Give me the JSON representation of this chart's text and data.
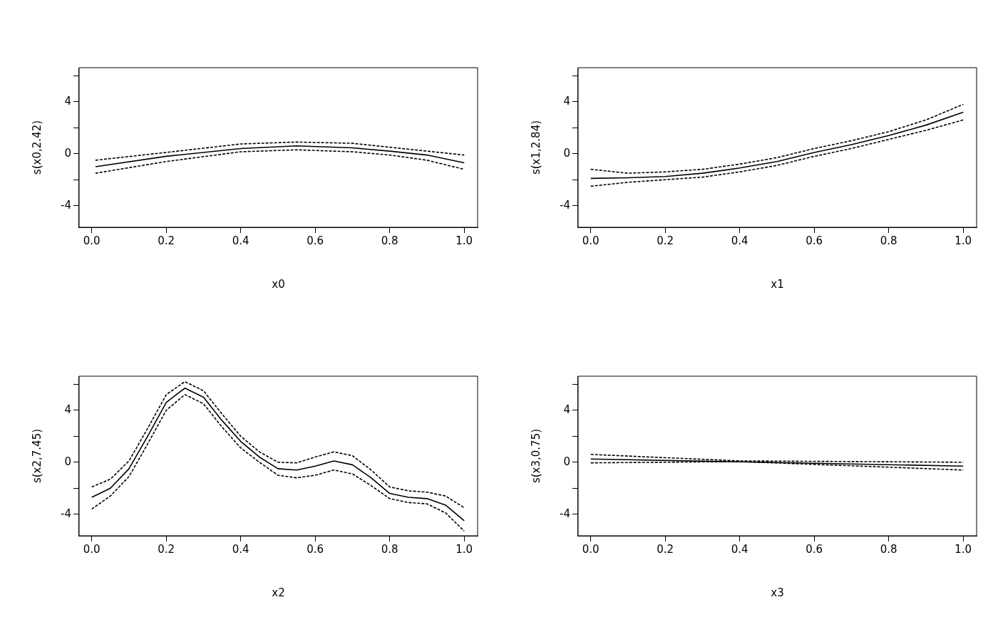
{
  "chart_data": [
    {
      "type": "line",
      "xlabel": "x0",
      "ylabel": "s(x0,2.42)",
      "marker": "none",
      "xlim": [
        -0.034,
        1.036
      ],
      "ylim": [
        -5.66,
        6.62
      ],
      "xticks": [
        {
          "value": 0,
          "label": "0.0"
        },
        {
          "value": 0.2,
          "label": "0.2"
        },
        {
          "value": 0.4,
          "label": "0.4"
        },
        {
          "value": 0.6,
          "label": "0.6"
        },
        {
          "value": 0.8,
          "label": "0.8"
        },
        {
          "value": 1,
          "label": "1.0"
        }
      ],
      "yticks": [
        {
          "value": -4,
          "label": "-4"
        },
        {
          "value": -2,
          "label": null
        },
        {
          "value": 0,
          "label": "0"
        },
        {
          "value": 2,
          "label": null
        },
        {
          "value": 4,
          "label": "4"
        },
        {
          "value": 6,
          "label": null
        }
      ],
      "series": [
        {
          "color": "#000000",
          "line_style": "solid",
          "x": [
            0.01,
            0.2,
            0.4,
            0.55,
            0.7,
            0.8,
            0.9,
            1.0
          ],
          "values": [
            -1.0,
            -0.2,
            0.4,
            0.6,
            0.45,
            0.2,
            -0.1,
            -0.7
          ]
        },
        {
          "color": "#000000",
          "line_style": "dashed",
          "x": [
            0.01,
            0.2,
            0.4,
            0.55,
            0.7,
            0.8,
            0.9,
            1.0
          ],
          "values": [
            -0.5,
            0.1,
            0.75,
            0.9,
            0.8,
            0.5,
            0.2,
            -0.1
          ]
        },
        {
          "color": "#000000",
          "line_style": "dashed",
          "x": [
            0.01,
            0.2,
            0.4,
            0.55,
            0.7,
            0.8,
            0.9,
            1.0
          ],
          "values": [
            -1.5,
            -0.6,
            0.15,
            0.3,
            0.15,
            -0.1,
            -0.5,
            -1.2
          ]
        }
      ]
    },
    {
      "type": "line",
      "xlabel": "x1",
      "ylabel": "s(x1,2.84)",
      "marker": "none",
      "xlim": [
        -0.034,
        1.036
      ],
      "ylim": [
        -5.66,
        6.62
      ],
      "xticks": [
        {
          "value": 0,
          "label": "0.0"
        },
        {
          "value": 0.2,
          "label": "0.2"
        },
        {
          "value": 0.4,
          "label": "0.4"
        },
        {
          "value": 0.6,
          "label": "0.6"
        },
        {
          "value": 0.8,
          "label": "0.8"
        },
        {
          "value": 1,
          "label": "1.0"
        }
      ],
      "yticks": [
        {
          "value": -4,
          "label": "-4"
        },
        {
          "value": -2,
          "label": null
        },
        {
          "value": 0,
          "label": "0"
        },
        {
          "value": 2,
          "label": null
        },
        {
          "value": 4,
          "label": "4"
        },
        {
          "value": 6,
          "label": null
        }
      ],
      "series": [
        {
          "color": "#000000",
          "line_style": "solid",
          "x": [
            0,
            0.1,
            0.2,
            0.3,
            0.4,
            0.5,
            0.6,
            0.7,
            0.8,
            0.9,
            1.0
          ],
          "values": [
            -1.9,
            -1.85,
            -1.75,
            -1.5,
            -1.1,
            -0.6,
            0.1,
            0.7,
            1.4,
            2.2,
            3.2
          ]
        },
        {
          "color": "#000000",
          "line_style": "dashed",
          "x": [
            0,
            0.1,
            0.2,
            0.3,
            0.4,
            0.5,
            0.6,
            0.7,
            0.8,
            0.9,
            1.0
          ],
          "values": [
            -1.2,
            -1.5,
            -1.4,
            -1.2,
            -0.8,
            -0.3,
            0.4,
            1.0,
            1.7,
            2.6,
            3.8
          ]
        },
        {
          "color": "#000000",
          "line_style": "dashed",
          "x": [
            0,
            0.1,
            0.2,
            0.3,
            0.4,
            0.5,
            0.6,
            0.7,
            0.8,
            0.9,
            1.0
          ],
          "values": [
            -2.5,
            -2.2,
            -2.0,
            -1.8,
            -1.4,
            -0.9,
            -0.2,
            0.4,
            1.1,
            1.8,
            2.6
          ]
        }
      ]
    },
    {
      "type": "line",
      "xlabel": "x2",
      "ylabel": "s(x2,7.45)",
      "marker": "none",
      "xlim": [
        -0.034,
        1.036
      ],
      "ylim": [
        -5.66,
        6.62
      ],
      "xticks": [
        {
          "value": 0,
          "label": "0.0"
        },
        {
          "value": 0.2,
          "label": "0.2"
        },
        {
          "value": 0.4,
          "label": "0.4"
        },
        {
          "value": 0.6,
          "label": "0.6"
        },
        {
          "value": 0.8,
          "label": "0.8"
        },
        {
          "value": 1,
          "label": "1.0"
        }
      ],
      "yticks": [
        {
          "value": -4,
          "label": "-4"
        },
        {
          "value": -2,
          "label": null
        },
        {
          "value": 0,
          "label": "0"
        },
        {
          "value": 2,
          "label": null
        },
        {
          "value": 4,
          "label": "4"
        },
        {
          "value": 6,
          "label": null
        }
      ],
      "series": [
        {
          "color": "#000000",
          "line_style": "solid",
          "x": [
            0,
            0.05,
            0.1,
            0.15,
            0.2,
            0.25,
            0.3,
            0.35,
            0.4,
            0.45,
            0.5,
            0.55,
            0.6,
            0.65,
            0.7,
            0.75,
            0.8,
            0.85,
            0.9,
            0.95,
            1.0
          ],
          "values": [
            -2.7,
            -2.0,
            -0.5,
            2.0,
            4.6,
            5.7,
            5.0,
            3.2,
            1.6,
            0.4,
            -0.5,
            -0.6,
            -0.3,
            0.1,
            -0.2,
            -1.2,
            -2.4,
            -2.7,
            -2.8,
            -3.3,
            -4.5
          ]
        },
        {
          "color": "#000000",
          "line_style": "dashed",
          "x": [
            0,
            0.05,
            0.1,
            0.15,
            0.2,
            0.25,
            0.3,
            0.35,
            0.4,
            0.45,
            0.5,
            0.55,
            0.6,
            0.65,
            0.7,
            0.75,
            0.8,
            0.85,
            0.9,
            0.95,
            1.0
          ],
          "values": [
            -1.9,
            -1.3,
            0.1,
            2.6,
            5.2,
            6.2,
            5.5,
            3.7,
            2.0,
            0.8,
            0.0,
            -0.05,
            0.4,
            0.8,
            0.5,
            -0.6,
            -1.9,
            -2.2,
            -2.3,
            -2.6,
            -3.5
          ]
        },
        {
          "color": "#000000",
          "line_style": "dashed",
          "x": [
            0,
            0.05,
            0.1,
            0.15,
            0.2,
            0.25,
            0.3,
            0.35,
            0.4,
            0.45,
            0.5,
            0.55,
            0.6,
            0.65,
            0.7,
            0.75,
            0.8,
            0.85,
            0.9,
            0.95,
            1.0
          ],
          "values": [
            -3.6,
            -2.6,
            -1.1,
            1.4,
            4.0,
            5.2,
            4.5,
            2.7,
            1.1,
            0.0,
            -1.0,
            -1.2,
            -1.0,
            -0.6,
            -0.9,
            -1.8,
            -2.8,
            -3.1,
            -3.2,
            -3.9,
            -5.3
          ]
        }
      ]
    },
    {
      "type": "line",
      "xlabel": "x3",
      "ylabel": "s(x3,0.75)",
      "marker": "none",
      "xlim": [
        -0.034,
        1.036
      ],
      "ylim": [
        -5.66,
        6.62
      ],
      "xticks": [
        {
          "value": 0,
          "label": "0.0"
        },
        {
          "value": 0.2,
          "label": "0.2"
        },
        {
          "value": 0.4,
          "label": "0.4"
        },
        {
          "value": 0.6,
          "label": "0.6"
        },
        {
          "value": 0.8,
          "label": "0.8"
        },
        {
          "value": 1,
          "label": "1.0"
        }
      ],
      "yticks": [
        {
          "value": -4,
          "label": "-4"
        },
        {
          "value": -2,
          "label": null
        },
        {
          "value": 0,
          "label": "0"
        },
        {
          "value": 2,
          "label": null
        },
        {
          "value": 4,
          "label": "4"
        },
        {
          "value": 6,
          "label": null
        }
      ],
      "series": [
        {
          "color": "#000000",
          "line_style": "solid",
          "x": [
            0,
            1.0
          ],
          "values": [
            0.25,
            -0.3
          ]
        },
        {
          "color": "#000000",
          "line_style": "dashed",
          "x": [
            0,
            0.4,
            1.0
          ],
          "values": [
            0.6,
            0.1,
            0.0
          ]
        },
        {
          "color": "#000000",
          "line_style": "dashed",
          "x": [
            0,
            0.4,
            1.0
          ],
          "values": [
            -0.05,
            0.05,
            -0.6
          ]
        }
      ]
    }
  ]
}
